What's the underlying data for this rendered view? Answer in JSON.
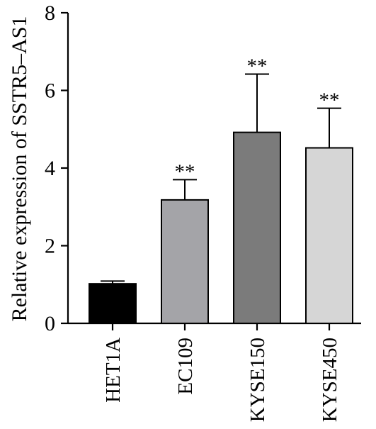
{
  "chart_data": {
    "type": "bar",
    "categories": [
      "HET1A",
      "EC109",
      "KYSE150",
      "KYSE450"
    ],
    "values": [
      1.02,
      3.18,
      4.92,
      4.52
    ],
    "errors": [
      0.07,
      0.52,
      1.5,
      1.02
    ],
    "significance": [
      "",
      "**",
      "**",
      "**"
    ],
    "colors": [
      "#000000",
      "#a4a4a8",
      "#7b7b7b",
      "#d6d6d6"
    ],
    "ylabel": "Relative expression of SSTR5–AS1",
    "xlabel": "",
    "title": "",
    "ylim": [
      0,
      8
    ],
    "yticks": [
      0,
      2,
      4,
      6,
      8
    ],
    "grid": false,
    "legend": "none"
  }
}
